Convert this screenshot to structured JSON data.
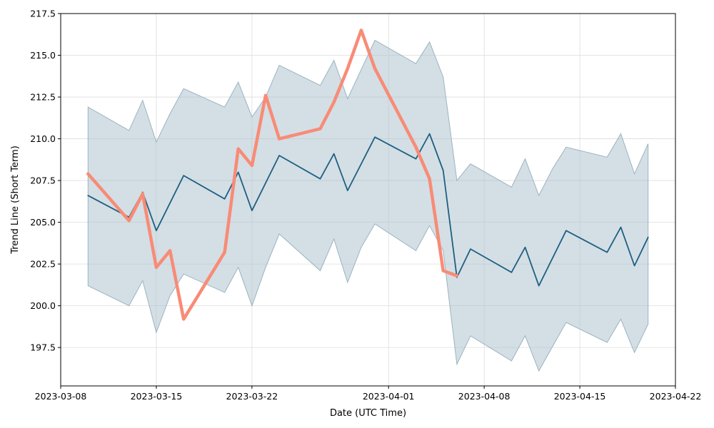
{
  "chart_data": {
    "type": "line",
    "xlabel": "Date (UTC Time)",
    "ylabel": "Trend Line (Short Term)",
    "xlim": [
      "2023-03-08",
      "2023-04-22"
    ],
    "ylim": [
      195.2,
      217.5
    ],
    "x_ticks": [
      "2023-03-08",
      "2023-03-15",
      "2023-03-22",
      "2023-04-01",
      "2023-04-08",
      "2023-04-15",
      "2023-04-22"
    ],
    "y_ticks": [
      197.5,
      200.0,
      202.5,
      205.0,
      207.5,
      210.0,
      212.5,
      215.0,
      217.5
    ],
    "y_tick_labels": [
      "197.5",
      "200.0",
      "202.5",
      "205.0",
      "207.5",
      "210.0",
      "212.5",
      "215.0",
      "217.5"
    ],
    "grid": true,
    "colors": {
      "trend": "#1f5f82",
      "band": "#a7c0cc",
      "band_edge": "#9bb3c0",
      "actual": "#f98b76",
      "grid": "#dddddd"
    },
    "series": [
      {
        "key": "trend",
        "x": [
          "2023-03-10",
          "2023-03-13",
          "2023-03-14",
          "2023-03-15",
          "2023-03-17",
          "2023-03-20",
          "2023-03-21",
          "2023-03-22",
          "2023-03-24",
          "2023-03-27",
          "2023-03-28",
          "2023-03-29",
          "2023-03-31",
          "2023-04-03",
          "2023-04-04",
          "2023-04-05",
          "2023-04-06",
          "2023-04-07",
          "2023-04-10",
          "2023-04-11",
          "2023-04-12",
          "2023-04-14",
          "2023-04-17",
          "2023-04-18",
          "2023-04-19",
          "2023-04-20"
        ],
        "values": [
          206.6,
          205.3,
          206.8,
          204.5,
          207.8,
          206.4,
          208.0,
          205.7,
          209.0,
          207.6,
          209.1,
          206.9,
          210.1,
          208.8,
          210.3,
          208.1,
          201.7,
          203.4,
          202.0,
          203.5,
          201.2,
          204.5,
          203.2,
          204.7,
          202.4,
          204.1
        ]
      },
      {
        "key": "upper",
        "x": [
          "2023-03-10",
          "2023-03-13",
          "2023-03-14",
          "2023-03-15",
          "2023-03-16",
          "2023-03-17",
          "2023-03-20",
          "2023-03-21",
          "2023-03-22",
          "2023-03-23",
          "2023-03-24",
          "2023-03-27",
          "2023-03-28",
          "2023-03-29",
          "2023-03-31",
          "2023-04-03",
          "2023-04-04",
          "2023-04-05",
          "2023-04-06",
          "2023-04-07",
          "2023-04-10",
          "2023-04-11",
          "2023-04-12",
          "2023-04-13",
          "2023-04-14",
          "2023-04-17",
          "2023-04-18",
          "2023-04-19",
          "2023-04-20"
        ],
        "values": [
          211.9,
          210.5,
          212.3,
          209.8,
          211.5,
          213.0,
          211.9,
          213.4,
          211.3,
          212.5,
          214.4,
          213.2,
          214.7,
          212.4,
          215.9,
          214.5,
          215.8,
          213.7,
          207.5,
          208.5,
          207.1,
          208.8,
          206.6,
          208.2,
          209.5,
          208.9,
          210.3,
          207.9,
          209.7
        ]
      },
      {
        "key": "lower",
        "x": [
          "2023-03-10",
          "2023-03-13",
          "2023-03-14",
          "2023-03-15",
          "2023-03-16",
          "2023-03-17",
          "2023-03-20",
          "2023-03-21",
          "2023-03-22",
          "2023-03-23",
          "2023-03-24",
          "2023-03-27",
          "2023-03-28",
          "2023-03-29",
          "2023-03-30",
          "2023-03-31",
          "2023-04-03",
          "2023-04-04",
          "2023-04-05",
          "2023-04-06",
          "2023-04-07",
          "2023-04-10",
          "2023-04-11",
          "2023-04-12",
          "2023-04-14",
          "2023-04-17",
          "2023-04-18",
          "2023-04-19",
          "2023-04-20"
        ],
        "values": [
          201.2,
          200.0,
          201.5,
          198.4,
          200.6,
          201.9,
          200.8,
          202.3,
          200.0,
          202.3,
          204.3,
          202.1,
          204.0,
          201.4,
          203.5,
          204.9,
          203.3,
          204.8,
          203.3,
          196.5,
          198.2,
          196.7,
          198.2,
          196.1,
          199.0,
          197.8,
          199.2,
          197.2,
          198.9
        ]
      },
      {
        "key": "actual",
        "x": [
          "2023-03-10",
          "2023-03-13",
          "2023-03-14",
          "2023-03-15",
          "2023-03-16",
          "2023-03-17",
          "2023-03-20",
          "2023-03-21",
          "2023-03-22",
          "2023-03-23",
          "2023-03-24",
          "2023-03-27",
          "2023-03-28",
          "2023-03-29",
          "2023-03-30",
          "2023-03-31",
          "2023-04-03",
          "2023-04-04",
          "2023-04-05",
          "2023-04-06"
        ],
        "values": [
          207.9,
          205.1,
          206.7,
          202.3,
          203.3,
          199.2,
          203.2,
          209.4,
          208.4,
          212.6,
          210.0,
          210.6,
          212.2,
          214.2,
          216.5,
          214.2,
          209.5,
          207.6,
          202.1,
          201.8
        ]
      }
    ]
  }
}
